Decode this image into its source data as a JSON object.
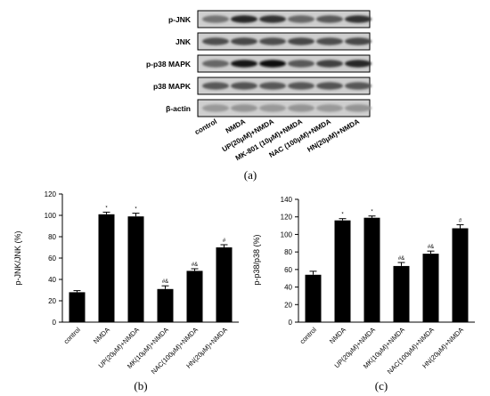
{
  "blot": {
    "rows": [
      "p-JNK",
      "JNK",
      "p-p38 MAPK",
      "p38 MAPK",
      "β-actin"
    ],
    "lanes": [
      "control",
      "NMDA",
      "UP(20μM)+NMDA",
      "MK-801 (10μM)+NMDA",
      "NAC (100μM)+NMDA",
      "HN(20μM)+NMDA"
    ],
    "caption": "(a)"
  },
  "chart_data": [
    {
      "type": "bar",
      "caption": "(b)",
      "ylabel": "p-JNK/JNK (%)",
      "ylim": [
        0,
        120
      ],
      "yticks": [
        0,
        20,
        40,
        60,
        80,
        100,
        120
      ],
      "categories": [
        "control",
        "NMDA",
        "UP(20μM)+NMDA",
        "MK(10μM)+NMDA",
        "NAC(100μM)+NMDA",
        "HN(20μM)+NMDA"
      ],
      "values": [
        28,
        101,
        99,
        31,
        48,
        70
      ],
      "errors": [
        1.5,
        2,
        3,
        3,
        2,
        2.5
      ],
      "annotations": [
        "",
        "*",
        "*",
        "#&",
        "#&",
        "#"
      ]
    },
    {
      "type": "bar",
      "caption": "(c)",
      "ylabel": "p-p38/p38 (%)",
      "ylim": [
        0,
        140
      ],
      "yticks": [
        0,
        20,
        40,
        60,
        80,
        100,
        120,
        140
      ],
      "categories": [
        "control",
        "NMDA",
        "UP(20μM)+NMDA",
        "MK(10μM)+NMDA",
        "NAC(100μM)+NMDA",
        "HN(20μM)+NMDA"
      ],
      "values": [
        54,
        116,
        119,
        64,
        78,
        107
      ],
      "errors": [
        4,
        2,
        2,
        4,
        3,
        4
      ],
      "annotations": [
        "",
        "*",
        "*",
        "#&",
        "#&",
        "#"
      ]
    }
  ]
}
